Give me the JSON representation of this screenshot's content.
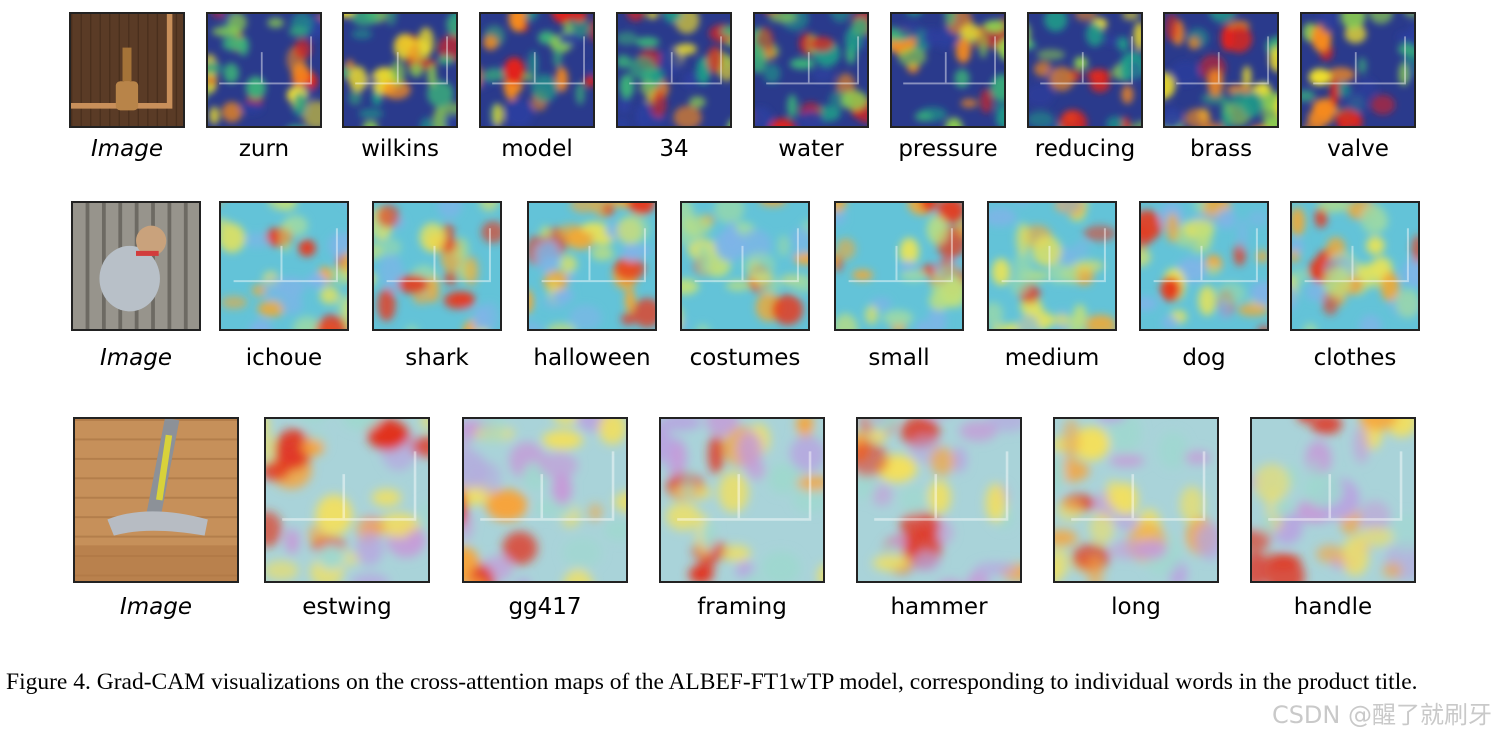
{
  "figure": {
    "rows": [
      {
        "image_label": "Image",
        "words": [
          "zurn",
          "wilkins",
          "model",
          "34",
          "water",
          "pressure",
          "reducing",
          "brass",
          "valve"
        ],
        "source_palette": [
          "#5a3b26",
          "#c88f5a"
        ],
        "heatmap_style": "jet-dark"
      },
      {
        "image_label": "Image",
        "words": [
          "ichoue",
          "shark",
          "halloween",
          "costumes",
          "small",
          "medium",
          "dog",
          "clothes"
        ],
        "source_palette": [
          "#6d6a63",
          "#b9b6ae"
        ],
        "heatmap_style": "jet-light"
      },
      {
        "image_label": "Image",
        "words": [
          "estwing",
          "gg417",
          "framing",
          "hammer",
          "long",
          "handle"
        ],
        "source_palette": [
          "#c6905a",
          "#e7c08c"
        ],
        "heatmap_style": "jet-pastel"
      }
    ],
    "caption": "Figure 4. Grad-CAM visualizations on the cross-attention maps of the ALBEF-FT1wTP model, corresponding to individual words in the product title."
  },
  "watermark": "CSDN @醒了就刷牙"
}
